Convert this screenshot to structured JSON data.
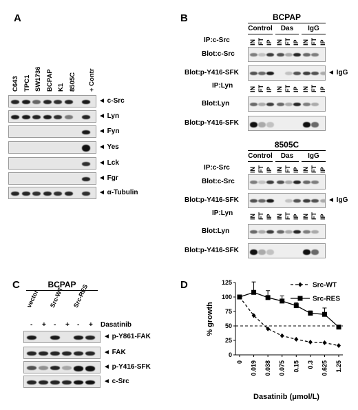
{
  "panelA": {
    "letter": "A",
    "cell_lines": [
      "C643",
      "TPC1",
      "SW1736",
      "BCPAP",
      "K1",
      "8505C",
      "+ Contr"
    ],
    "blots": [
      "◄ c-Src",
      "◄ Lyn",
      "◄ Fyn",
      "◄ Yes",
      "◄ Lck",
      "◄ Fgr",
      "◄ α-Tubulin"
    ]
  },
  "panelB": {
    "letter": "B",
    "top": {
      "cell": "BCPAP",
      "conditions": [
        "Control",
        "Das",
        "IgG"
      ],
      "lanes": [
        "IN",
        "FT",
        "IP",
        "IN",
        "FT",
        "IP",
        "IN",
        "FT",
        "IP"
      ],
      "ip1": "IP:c-Src",
      "blot1": "Blot:c-Src",
      "blot2": "Blot:p-Y416-SFK",
      "igg": "◄ IgG",
      "ip2": "IP:Lyn",
      "blot3": "Blot:Lyn",
      "blot4": "Blot:p-Y416-SFK"
    },
    "bottom": {
      "cell": "8505C",
      "conditions": [
        "Control",
        "Das",
        "IgG"
      ],
      "lanes": [
        "IN",
        "FT",
        "IP",
        "IN",
        "FT",
        "IP",
        "IN",
        "FT",
        "IP"
      ],
      "ip1": "IP:c-Src",
      "blot1": "Blot:c-Src",
      "blot2": "Blot:p-Y416-SFK",
      "igg": "◄ IgG",
      "ip2": "IP:Lyn",
      "blot3": "Blot:Lyn",
      "blot4": "Blot:p-Y416-SFK"
    }
  },
  "panelC": {
    "letter": "C",
    "cell": "BCPAP",
    "groups": [
      "vector",
      "Src-WT",
      "Src-RES"
    ],
    "signs": [
      "-",
      "+",
      "-",
      "+",
      "-",
      "+"
    ],
    "drug": "Dasatinib",
    "blots": [
      "◄ p-Y861-FAK",
      "◄ FAK",
      "◄ p-Y416-SFK",
      "◄ c-Src"
    ]
  },
  "panelD": {
    "letter": "D"
  },
  "chart_data": {
    "type": "line",
    "x": [
      "0",
      "0.019",
      "0.038",
      "0.075",
      "0.15",
      "0.3",
      "0.625",
      "1.25"
    ],
    "xlabel": "Dasatinib (μmol/L)",
    "ylabel": "% growth",
    "ylim": [
      0,
      125
    ],
    "yticks": [
      "0",
      "25",
      "50",
      "75",
      "100",
      "125"
    ],
    "reference_line": 50,
    "legend_position": "top-right",
    "series": [
      {
        "name": "Src-WT",
        "values": [
          100,
          68,
          45,
          33,
          27,
          22,
          21,
          16
        ],
        "errors": [
          0,
          0,
          0,
          0,
          0,
          0,
          0,
          0
        ],
        "marker": "diamond",
        "line": "dashed"
      },
      {
        "name": "Src-RES",
        "values": [
          100,
          108,
          99,
          93,
          85,
          72,
          70,
          48
        ],
        "errors": [
          0,
          18,
          12,
          9,
          5,
          4,
          11,
          0
        ],
        "marker": "square",
        "line": "solid"
      }
    ]
  }
}
